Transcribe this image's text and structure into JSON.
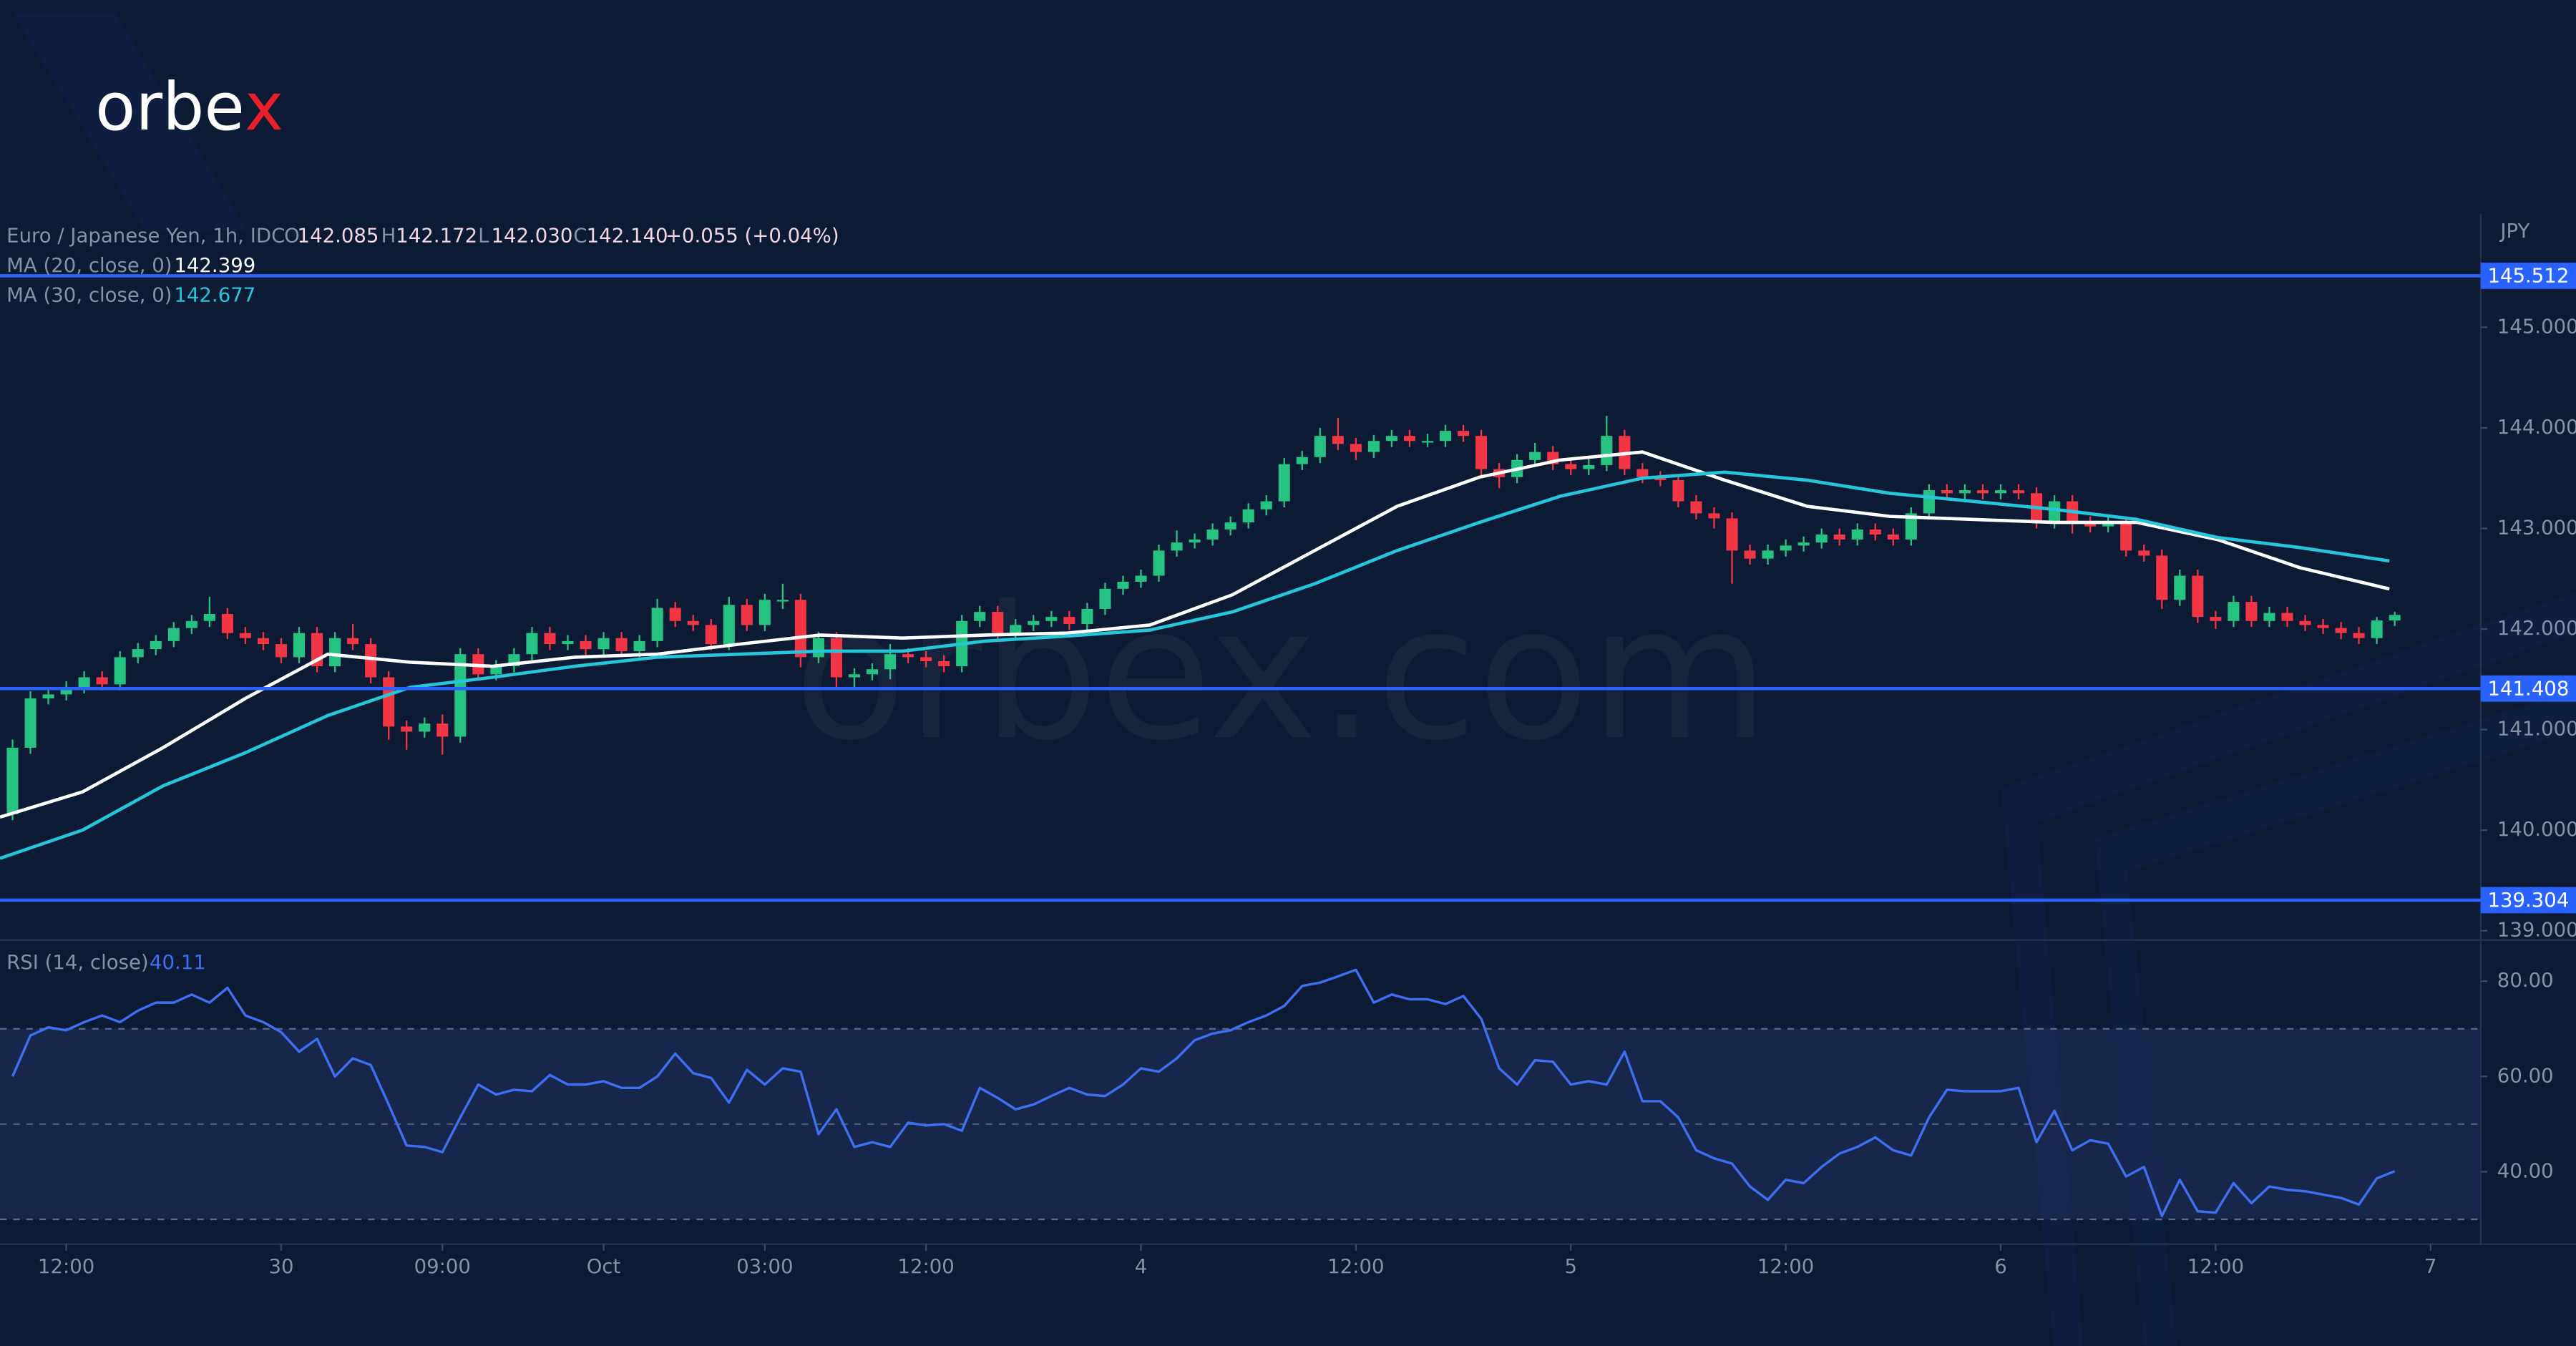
{
  "logo": {
    "main": "orbe",
    "accent": "x"
  },
  "watermark": "orbex.com",
  "legend": {
    "symbol": "Euro / Japanese Yen, 1h, IDC",
    "o_label": "O",
    "o": "142.085",
    "h_label": "H",
    "h": "142.172",
    "l_label": "L",
    "l": "142.030",
    "c_label": "C",
    "c": "142.140",
    "change": "+0.055 (+0.04%)"
  },
  "chart_data": [
    {
      "type": "candlestick",
      "currency": "JPY",
      "up_color": "#26c281",
      "down_color": "#f23645",
      "xlim": [
        -0.7,
        137.8
      ],
      "ylim": [
        138.94,
        146.13
      ],
      "yticks": [
        {
          "value": 139,
          "label": "139.000"
        },
        {
          "value": 140,
          "label": "140.000"
        },
        {
          "value": 141,
          "label": "141.000"
        },
        {
          "value": 142,
          "label": "142.000"
        },
        {
          "value": 143,
          "label": "143.000"
        },
        {
          "value": 144,
          "label": "144.000"
        },
        {
          "value": 145,
          "label": "145.000"
        }
      ],
      "xticks": [
        {
          "value": 3,
          "label": "12:00"
        },
        {
          "value": 15,
          "label": "30"
        },
        {
          "value": 24,
          "label": "09:00"
        },
        {
          "value": 33,
          "label": "Oct"
        },
        {
          "value": 42,
          "label": "03:00"
        },
        {
          "value": 51,
          "label": "12:00"
        },
        {
          "value": 63,
          "label": "4"
        },
        {
          "value": 75,
          "label": "12:00"
        },
        {
          "value": 87,
          "label": "5"
        },
        {
          "value": 99,
          "label": "12:00"
        },
        {
          "value": 111,
          "label": "6"
        },
        {
          "value": 123,
          "label": "12:00"
        },
        {
          "value": 135,
          "label": "7"
        }
      ],
      "levels": [
        145.512,
        141.408,
        139.304
      ],
      "level_color": "#2962ff",
      "ohlc": [
        [
          140.16,
          140.9,
          140.1,
          140.82
        ],
        [
          140.82,
          141.38,
          140.76,
          141.31
        ],
        [
          141.31,
          141.42,
          141.25,
          141.35
        ],
        [
          141.35,
          141.48,
          141.29,
          141.42
        ],
        [
          141.42,
          141.58,
          141.36,
          141.52
        ],
        [
          141.52,
          141.58,
          141.39,
          141.45
        ],
        [
          141.45,
          141.78,
          141.39,
          141.72
        ],
        [
          141.72,
          141.86,
          141.66,
          141.8
        ],
        [
          141.8,
          141.94,
          141.74,
          141.88
        ],
        [
          141.88,
          142.07,
          141.82,
          142.01
        ],
        [
          142.01,
          142.14,
          141.95,
          142.08
        ],
        [
          142.08,
          142.32,
          142.02,
          142.15
        ],
        [
          142.15,
          142.21,
          141.9,
          141.96
        ],
        [
          141.96,
          142.02,
          141.85,
          141.91
        ],
        [
          141.91,
          141.97,
          141.79,
          141.85
        ],
        [
          141.85,
          141.91,
          141.66,
          141.72
        ],
        [
          141.72,
          142.02,
          141.66,
          141.96
        ],
        [
          141.96,
          142.02,
          141.57,
          141.63
        ],
        [
          141.63,
          141.97,
          141.57,
          141.91
        ],
        [
          141.91,
          142.05,
          141.79,
          141.85
        ],
        [
          141.85,
          141.91,
          141.46,
          141.52
        ],
        [
          141.52,
          141.58,
          140.9,
          141.03
        ],
        [
          141.03,
          141.09,
          140.8,
          140.98
        ],
        [
          140.98,
          141.12,
          140.92,
          141.06
        ],
        [
          141.06,
          141.15,
          140.75,
          140.93
        ],
        [
          140.93,
          141.81,
          140.87,
          141.75
        ],
        [
          141.75,
          141.81,
          141.49,
          141.55
        ],
        [
          141.55,
          141.69,
          141.49,
          141.63
        ],
        [
          141.63,
          141.81,
          141.57,
          141.75
        ],
        [
          141.75,
          142.02,
          141.69,
          141.96
        ],
        [
          141.96,
          142.02,
          141.79,
          141.85
        ],
        [
          141.85,
          141.94,
          141.79,
          141.88
        ],
        [
          141.88,
          141.94,
          141.74,
          141.8
        ],
        [
          141.8,
          141.97,
          141.74,
          141.91
        ],
        [
          141.91,
          141.97,
          141.72,
          141.78
        ],
        [
          141.78,
          141.94,
          141.72,
          141.88
        ],
        [
          141.88,
          142.3,
          141.82,
          142.21
        ],
        [
          142.21,
          142.27,
          142.02,
          142.08
        ],
        [
          142.08,
          142.14,
          141.98,
          142.04
        ],
        [
          142.04,
          142.1,
          141.79,
          141.85
        ],
        [
          141.85,
          142.32,
          141.79,
          142.24
        ],
        [
          142.24,
          142.3,
          141.98,
          142.04
        ],
        [
          142.04,
          142.35,
          141.98,
          142.29
        ],
        [
          142.29,
          142.45,
          142.2,
          142.29
        ],
        [
          142.29,
          142.35,
          141.62,
          141.72
        ],
        [
          141.72,
          141.97,
          141.66,
          141.91
        ],
        [
          141.91,
          141.97,
          141.42,
          141.52
        ],
        [
          141.52,
          141.61,
          141.42,
          141.55
        ],
        [
          141.55,
          141.66,
          141.49,
          141.6
        ],
        [
          141.6,
          141.85,
          141.5,
          141.75
        ],
        [
          141.75,
          141.81,
          141.66,
          141.72
        ],
        [
          141.72,
          141.78,
          141.62,
          141.68
        ],
        [
          141.68,
          141.74,
          141.57,
          141.63
        ],
        [
          141.63,
          142.14,
          141.57,
          142.08
        ],
        [
          142.08,
          142.23,
          142.02,
          142.17
        ],
        [
          142.17,
          142.23,
          141.9,
          141.96
        ],
        [
          141.96,
          142.1,
          141.9,
          142.04
        ],
        [
          142.04,
          142.14,
          141.98,
          142.08
        ],
        [
          142.08,
          142.18,
          142.02,
          142.12
        ],
        [
          142.12,
          142.18,
          141.99,
          142.05
        ],
        [
          142.05,
          142.26,
          141.99,
          142.2
        ],
        [
          142.2,
          142.46,
          142.14,
          142.4
        ],
        [
          142.4,
          142.53,
          142.34,
          142.47
        ],
        [
          142.47,
          142.59,
          142.41,
          142.53
        ],
        [
          142.53,
          142.84,
          142.47,
          142.78
        ],
        [
          142.78,
          142.98,
          142.72,
          142.86
        ],
        [
          142.86,
          142.95,
          142.8,
          142.89
        ],
        [
          142.89,
          143.05,
          142.83,
          142.99
        ],
        [
          142.99,
          143.12,
          142.93,
          143.06
        ],
        [
          143.06,
          143.25,
          143.0,
          143.19
        ],
        [
          143.19,
          143.33,
          143.13,
          143.27
        ],
        [
          143.27,
          143.7,
          143.21,
          143.64
        ],
        [
          143.64,
          143.77,
          143.58,
          143.71
        ],
        [
          143.71,
          144.0,
          143.65,
          143.92
        ],
        [
          143.92,
          144.1,
          143.78,
          143.84
        ],
        [
          143.84,
          143.9,
          143.68,
          143.76
        ],
        [
          143.76,
          143.93,
          143.7,
          143.87
        ],
        [
          143.87,
          143.98,
          143.81,
          143.92
        ],
        [
          143.92,
          143.98,
          143.81,
          143.87
        ],
        [
          143.87,
          143.94,
          143.81,
          143.87
        ],
        [
          143.87,
          144.03,
          143.81,
          143.97
        ],
        [
          143.97,
          144.03,
          143.86,
          143.92
        ],
        [
          143.92,
          143.98,
          143.5,
          143.59
        ],
        [
          143.59,
          143.65,
          143.4,
          143.51
        ],
        [
          143.51,
          143.74,
          143.45,
          143.68
        ],
        [
          143.68,
          143.85,
          143.62,
          143.76
        ],
        [
          143.76,
          143.82,
          143.58,
          143.64
        ],
        [
          143.64,
          143.7,
          143.53,
          143.59
        ],
        [
          143.59,
          143.69,
          143.53,
          143.63
        ],
        [
          143.63,
          144.12,
          143.57,
          143.92
        ],
        [
          143.92,
          143.98,
          143.53,
          143.59
        ],
        [
          143.59,
          143.65,
          143.45,
          143.51
        ],
        [
          143.51,
          143.57,
          143.42,
          143.48
        ],
        [
          143.48,
          143.54,
          143.21,
          143.27
        ],
        [
          143.27,
          143.33,
          143.09,
          143.15
        ],
        [
          143.15,
          143.21,
          143.0,
          143.1
        ],
        [
          143.1,
          143.16,
          142.45,
          142.78
        ],
        [
          142.78,
          142.84,
          142.64,
          142.7
        ],
        [
          142.7,
          142.84,
          142.64,
          142.78
        ],
        [
          142.78,
          142.89,
          142.72,
          142.83
        ],
        [
          142.83,
          142.92,
          142.77,
          142.86
        ],
        [
          142.86,
          143.0,
          142.8,
          142.94
        ],
        [
          142.94,
          143.0,
          142.83,
          142.89
        ],
        [
          142.89,
          143.05,
          142.83,
          142.99
        ],
        [
          142.99,
          143.05,
          142.88,
          142.94
        ],
        [
          142.94,
          143.0,
          142.83,
          142.89
        ],
        [
          142.89,
          143.21,
          142.83,
          143.15
        ],
        [
          143.15,
          143.44,
          143.09,
          143.38
        ],
        [
          143.38,
          143.44,
          143.29,
          143.35
        ],
        [
          143.35,
          143.44,
          143.29,
          143.38
        ],
        [
          143.38,
          143.44,
          143.29,
          143.35
        ],
        [
          143.35,
          143.44,
          143.29,
          143.38
        ],
        [
          143.38,
          143.44,
          143.29,
          143.35
        ],
        [
          143.35,
          143.41,
          143.0,
          143.06
        ],
        [
          143.06,
          143.33,
          143.0,
          143.27
        ],
        [
          143.27,
          143.33,
          142.95,
          143.06
        ],
        [
          143.06,
          143.12,
          142.96,
          143.02
        ],
        [
          143.02,
          143.12,
          142.96,
          143.06
        ],
        [
          143.06,
          143.12,
          142.72,
          142.78
        ],
        [
          142.78,
          142.84,
          142.67,
          142.73
        ],
        [
          142.73,
          142.79,
          142.2,
          142.29
        ],
        [
          142.29,
          142.59,
          142.23,
          142.53
        ],
        [
          142.53,
          142.59,
          142.06,
          142.12
        ],
        [
          142.12,
          142.18,
          142.0,
          142.08
        ],
        [
          142.08,
          142.33,
          142.02,
          142.27
        ],
        [
          142.27,
          142.33,
          142.02,
          142.08
        ],
        [
          142.08,
          142.22,
          142.02,
          142.16
        ],
        [
          142.16,
          142.22,
          142.02,
          142.08
        ],
        [
          142.08,
          142.14,
          141.98,
          142.04
        ],
        [
          142.04,
          142.1,
          141.95,
          142.01
        ],
        [
          142.01,
          142.07,
          141.9,
          141.96
        ],
        [
          141.96,
          142.02,
          141.85,
          141.91
        ],
        [
          141.91,
          142.12,
          141.85,
          142.085
        ],
        [
          142.085,
          142.172,
          142.03,
          142.14
        ]
      ],
      "series": [
        {
          "name": "MA (20, close, 0)",
          "last_label": "142.399",
          "color": "#ffffff",
          "x": [
            -0.7,
            3.9,
            8.4,
            13.0,
            17.6,
            22.2,
            26.8,
            31.4,
            36.0,
            40.6,
            45.1,
            49.7,
            54.3,
            58.9,
            63.5,
            68.1,
            72.7,
            77.3,
            81.9,
            86.4,
            91.0,
            95.6,
            100.2,
            104.8,
            109.4,
            114.0,
            118.6,
            123.1,
            127.7,
            132.7
          ],
          "values": [
            140.13,
            140.38,
            140.82,
            141.31,
            141.75,
            141.67,
            141.63,
            141.72,
            141.75,
            141.85,
            141.94,
            141.91,
            141.94,
            141.96,
            142.04,
            142.34,
            142.78,
            143.22,
            143.51,
            143.68,
            143.76,
            143.48,
            143.22,
            143.12,
            143.09,
            143.06,
            143.06,
            142.89,
            142.61,
            142.399
          ]
        },
        {
          "name": "MA (30, close, 0)",
          "last_label": "142.677",
          "color": "#26c6da",
          "x": [
            -0.7,
            3.9,
            8.4,
            13.0,
            17.6,
            22.2,
            26.8,
            31.4,
            36.0,
            40.6,
            45.1,
            49.7,
            54.3,
            58.9,
            63.5,
            68.1,
            72.7,
            77.3,
            81.9,
            86.4,
            91.0,
            95.6,
            100.2,
            104.8,
            109.4,
            114.0,
            118.6,
            123.1,
            127.7,
            132.7
          ],
          "values": [
            139.72,
            140.0,
            140.44,
            140.77,
            141.14,
            141.42,
            141.52,
            141.63,
            141.72,
            141.75,
            141.78,
            141.78,
            141.88,
            141.93,
            141.99,
            142.17,
            142.45,
            142.78,
            143.06,
            143.32,
            143.5,
            143.56,
            143.48,
            143.35,
            143.27,
            143.19,
            143.09,
            142.91,
            142.81,
            142.677
          ]
        }
      ]
    },
    {
      "type": "line",
      "title": "RSI (14, close)",
      "last_label": "40.11",
      "color": "#3d6ff0",
      "band": [
        30,
        70
      ],
      "midline": 50,
      "band_color": "#1a2a52",
      "ylim": [
        24.8,
        87.6
      ],
      "yticks": [
        {
          "value": 40,
          "label": "40.00"
        },
        {
          "value": 60,
          "label": "60.00"
        },
        {
          "value": 80,
          "label": "80.00"
        }
      ],
      "values": [
        60.0,
        68.6,
        70.3,
        69.7,
        71.4,
        72.8,
        71.4,
        73.8,
        75.5,
        75.5,
        77.2,
        75.5,
        78.6,
        72.8,
        71.4,
        69.3,
        65.2,
        67.9,
        60.0,
        63.8,
        62.4,
        54.1,
        45.5,
        45.2,
        44.1,
        51.4,
        58.3,
        56.2,
        57.2,
        56.9,
        60.3,
        58.3,
        58.3,
        59.0,
        57.6,
        57.6,
        60.0,
        64.8,
        60.7,
        59.7,
        54.5,
        61.4,
        58.3,
        61.7,
        61.0,
        47.9,
        53.1,
        45.2,
        46.2,
        45.2,
        50.3,
        49.7,
        50.0,
        48.6,
        57.6,
        55.5,
        53.1,
        54.1,
        55.9,
        57.6,
        56.2,
        55.9,
        58.3,
        61.7,
        61.0,
        63.8,
        67.6,
        69.0,
        69.7,
        71.4,
        72.8,
        74.8,
        79.0,
        79.7,
        81.0,
        82.4,
        75.5,
        77.2,
        76.2,
        76.2,
        75.2,
        76.9,
        72.1,
        61.7,
        58.3,
        63.4,
        63.1,
        58.3,
        59.0,
        58.3,
        65.2,
        54.8,
        54.8,
        51.4,
        44.5,
        42.8,
        41.7,
        36.9,
        34.1,
        38.3,
        37.6,
        41.0,
        43.8,
        45.2,
        47.2,
        44.5,
        43.4,
        51.4,
        57.2,
        56.9,
        56.9,
        56.9,
        57.6,
        46.2,
        52.8,
        44.5,
        46.6,
        45.9,
        39.0,
        41.0,
        30.7,
        38.3,
        31.7,
        31.4,
        37.6,
        33.4,
        36.9,
        36.2,
        35.9,
        35.2,
        34.5,
        33.1,
        38.6,
        40.11
      ]
    }
  ]
}
